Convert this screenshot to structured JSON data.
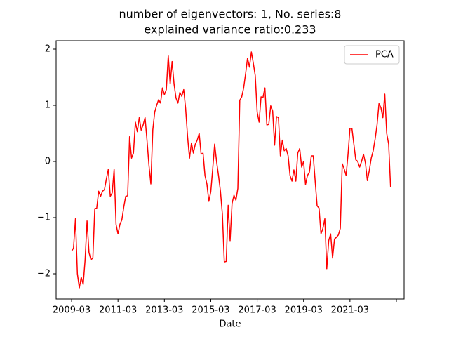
{
  "chart_data": {
    "type": "line",
    "title": [
      "number of eigenvectors: 1, No. series:8",
      "explained variance ratio:0.233"
    ],
    "xlabel": "Date",
    "x": [
      "2009-03",
      "2009-04",
      "2009-05",
      "2009-06",
      "2009-07",
      "2009-08",
      "2009-09",
      "2009-10",
      "2009-11",
      "2009-12",
      "2010-01",
      "2010-02",
      "2010-03",
      "2010-04",
      "2010-05",
      "2010-06",
      "2010-07",
      "2010-08",
      "2010-09",
      "2010-10",
      "2010-11",
      "2010-12",
      "2011-01",
      "2011-02",
      "2011-03",
      "2011-04",
      "2011-05",
      "2011-06",
      "2011-07",
      "2011-08",
      "2011-09",
      "2011-10",
      "2011-11",
      "2011-12",
      "2012-01",
      "2012-02",
      "2012-03",
      "2012-04",
      "2012-05",
      "2012-06",
      "2012-07",
      "2012-08",
      "2012-09",
      "2012-10",
      "2012-11",
      "2012-12",
      "2013-01",
      "2013-02",
      "2013-03",
      "2013-04",
      "2013-05",
      "2013-06",
      "2013-07",
      "2013-08",
      "2013-09",
      "2013-10",
      "2013-11",
      "2013-12",
      "2014-01",
      "2014-02",
      "2014-03",
      "2014-04",
      "2014-05",
      "2014-06",
      "2014-07",
      "2014-08",
      "2014-09",
      "2014-10",
      "2014-11",
      "2014-12",
      "2015-01",
      "2015-02",
      "2015-03",
      "2015-04",
      "2015-05",
      "2015-06",
      "2015-07",
      "2015-08",
      "2015-09",
      "2015-10",
      "2015-11",
      "2015-12",
      "2016-01",
      "2016-02",
      "2016-03",
      "2016-04",
      "2016-05",
      "2016-06",
      "2016-07",
      "2016-08",
      "2016-09",
      "2016-10",
      "2016-11",
      "2016-12",
      "2017-01",
      "2017-02",
      "2017-03",
      "2017-04",
      "2017-05",
      "2017-06",
      "2017-07",
      "2017-08",
      "2017-09",
      "2017-10",
      "2017-11",
      "2017-12",
      "2018-01",
      "2018-02",
      "2018-03",
      "2018-04",
      "2018-05",
      "2018-06",
      "2018-07",
      "2018-08",
      "2018-09",
      "2018-10",
      "2018-11",
      "2018-12",
      "2019-01",
      "2019-02",
      "2019-03",
      "2019-04",
      "2019-05",
      "2019-06",
      "2019-07",
      "2019-08",
      "2019-09",
      "2019-10",
      "2019-11",
      "2019-12",
      "2020-01",
      "2020-02",
      "2020-03",
      "2020-04",
      "2020-05",
      "2020-06",
      "2020-07",
      "2020-08",
      "2020-09",
      "2020-10",
      "2020-11",
      "2020-12",
      "2021-01",
      "2021-02",
      "2021-03",
      "2021-04",
      "2021-05",
      "2021-06",
      "2021-07",
      "2021-08",
      "2021-09",
      "2021-10",
      "2021-11",
      "2021-12",
      "2022-01",
      "2022-02",
      "2022-03",
      "2022-04",
      "2022-05",
      "2022-06",
      "2022-07",
      "2022-08",
      "2022-09",
      "2022-10",
      "2022-11",
      "2022-12"
    ],
    "series": [
      {
        "name": "PCA",
        "color": "#ff0000",
        "values": [
          -1.6,
          -1.54,
          -1.02,
          -2.0,
          -2.25,
          -2.06,
          -2.19,
          -1.75,
          -1.06,
          -1.62,
          -1.75,
          -1.72,
          -0.84,
          -0.83,
          -0.53,
          -0.62,
          -0.53,
          -0.5,
          -0.31,
          -0.14,
          -0.62,
          -0.56,
          -0.14,
          -1.12,
          -1.29,
          -1.12,
          -1.04,
          -0.81,
          -0.62,
          -0.61,
          0.44,
          0.06,
          0.15,
          0.7,
          0.53,
          0.78,
          0.56,
          0.65,
          0.78,
          0.38,
          -0.06,
          -0.4,
          0.56,
          0.88,
          1.0,
          1.1,
          1.04,
          1.31,
          1.19,
          1.28,
          1.88,
          1.38,
          1.78,
          1.38,
          1.13,
          1.04,
          1.23,
          1.16,
          1.28,
          0.94,
          0.44,
          0.06,
          0.33,
          0.15,
          0.31,
          0.38,
          0.5,
          0.13,
          0.15,
          -0.25,
          -0.4,
          -0.71,
          -0.54,
          -0.13,
          0.31,
          0,
          -0.25,
          -0.53,
          -0.94,
          -1.79,
          -1.78,
          -0.78,
          -1.41,
          -0.75,
          -0.6,
          -0.69,
          -0.48,
          1.09,
          1.15,
          1.31,
          1.56,
          1.84,
          1.68,
          1.95,
          1.75,
          1.53,
          0.88,
          0.7,
          1.15,
          1.14,
          1.31,
          0.65,
          0.66,
          0.99,
          0.9,
          0.29,
          0.8,
          0.78,
          0.1,
          0.38,
          0.19,
          0.23,
          0.1,
          -0.25,
          -0.35,
          -0.15,
          -0.35,
          0.15,
          0.23,
          -0.1,
          0,
          -0.41,
          -0.25,
          -0.19,
          0.1,
          0.1,
          -0.35,
          -0.79,
          -0.83,
          -1.29,
          -1.19,
          -1.02,
          -1.91,
          -1.41,
          -1.29,
          -1.72,
          -1.38,
          -1.35,
          -1.31,
          -1.19,
          -0.04,
          -0.13,
          -0.25,
          0.13,
          0.59,
          0.59,
          0.31,
          0.03,
          0,
          -0.1,
          0,
          0.13,
          -0.03,
          -0.34,
          -0.16,
          0.06,
          0.19,
          0.4,
          0.65,
          1.03,
          0.96,
          0.78,
          1.2,
          0.5,
          0.31,
          -0.45
        ]
      }
    ],
    "xlim": [
      "2008-07",
      "2023-07"
    ],
    "xticks": [
      "2009-03",
      "2011-03",
      "2013-03",
      "2015-03",
      "2017-03",
      "2019-03",
      "2021-03",
      {
        "value": "2023-03",
        "label": null
      }
    ],
    "ylim": [
      -2.45,
      2.15
    ],
    "yticks": [
      {
        "value": -2,
        "label": "−2"
      },
      {
        "value": -1,
        "label": "−1"
      },
      0,
      1,
      2
    ],
    "legend": "upper right"
  }
}
